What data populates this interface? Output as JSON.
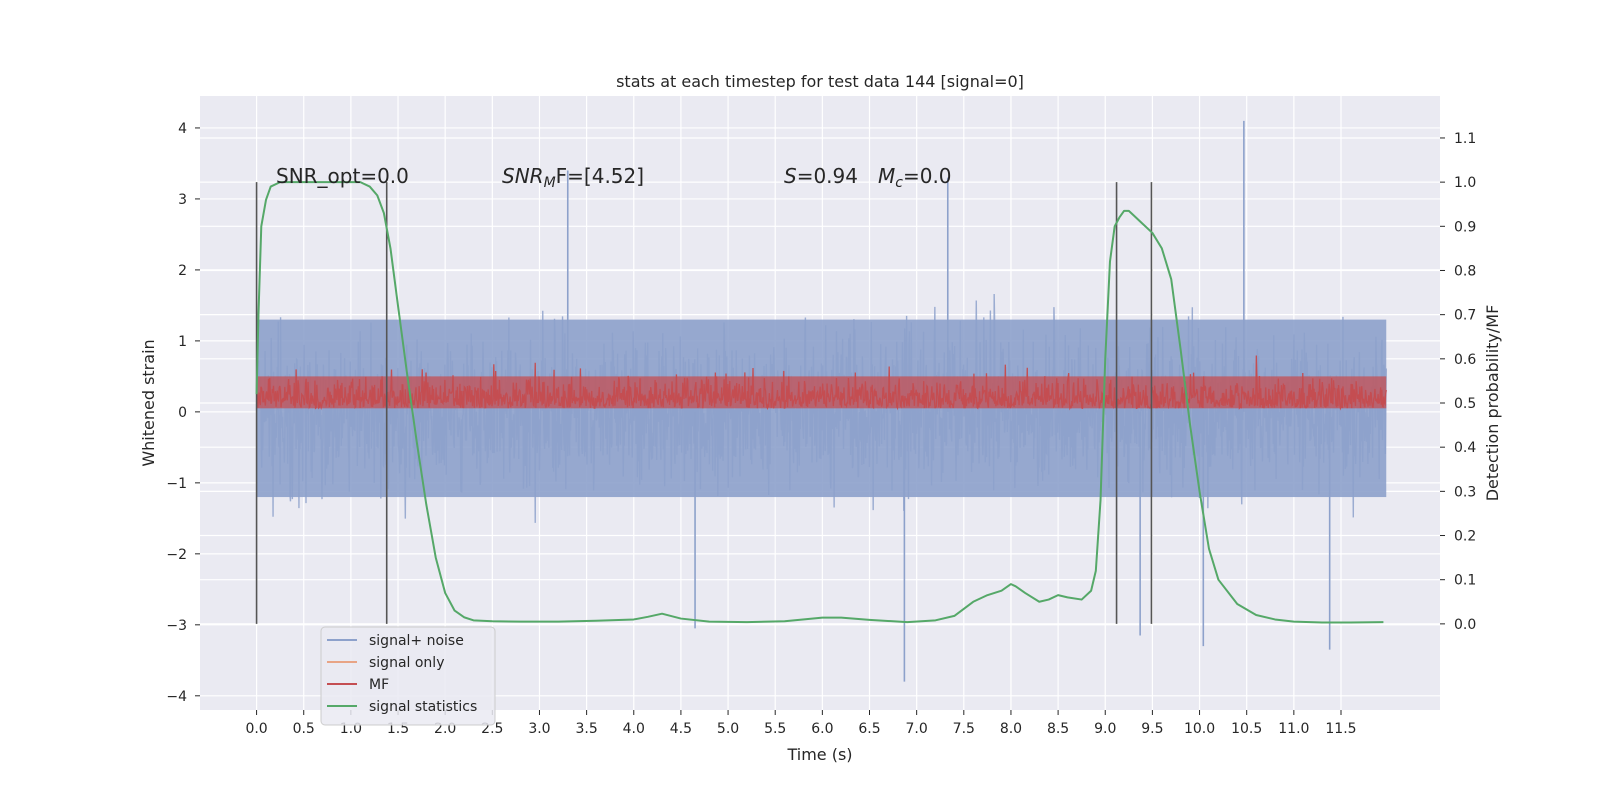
{
  "chart_data": {
    "type": "line",
    "title": "stats at each timestep for test data 144 [signal=0]",
    "xlabel": "Time (s)",
    "ylabel": "Whitened strain",
    "ylabel_right": "Detection probability/MF",
    "xlim": [
      -0.6,
      12.55
    ],
    "ylim": [
      -4.2,
      4.45
    ],
    "ylim_right": [
      -0.195,
      1.195
    ],
    "x_ticks": [
      "0.0",
      "0.5",
      "1.0",
      "1.5",
      "2.0",
      "2.5",
      "3.0",
      "3.5",
      "4.0",
      "4.5",
      "5.0",
      "5.5",
      "6.0",
      "6.5",
      "7.0",
      "7.5",
      "8.0",
      "8.5",
      "9.0",
      "9.5",
      "10.0",
      "10.5",
      "11.0",
      "11.5"
    ],
    "y_ticks": [
      "4",
      "3",
      "2",
      "1",
      "0",
      "−1",
      "−2",
      "−3",
      "−4"
    ],
    "y_ticks_right": [
      "1.1",
      "1.0",
      "0.9",
      "0.8",
      "0.7",
      "0.6",
      "0.5",
      "0.4",
      "0.3",
      "0.2",
      "0.1",
      "0.0"
    ],
    "grid": true,
    "legend_position": "lower-left",
    "annotations": {
      "snr_opt": "SNR_opt=0.0",
      "snr_mf_main": "SNR",
      "snr_mf_sub": "M",
      "snr_mf_rest": "F=[4.52]",
      "s_main": "S",
      "s_rest": "=0.94",
      "mc_main": "M",
      "mc_sub": "c",
      "mc_rest": "=0.0"
    },
    "vertical_markers_x": [
      0.0,
      1.38,
      9.12,
      9.49
    ],
    "series": [
      {
        "name": "signal+ noise",
        "color": "#8da1cb",
        "axis": "left",
        "x_range": [
          0.0,
          11.98
        ],
        "band_typical": [
          -1.2,
          1.3
        ],
        "band_peaks": [
          -3.0,
          3.2
        ],
        "notable_peaks": [
          [
            10.47,
            4.1
          ],
          [
            6.87,
            -3.8
          ],
          [
            3.3,
            3.4
          ],
          [
            11.38,
            -3.35
          ],
          [
            9.37,
            -3.15
          ],
          [
            10.04,
            -3.3
          ],
          [
            7.33,
            3.3
          ],
          [
            4.65,
            -3.05
          ]
        ]
      },
      {
        "name": "signal only",
        "color": "#e8a485",
        "axis": "left",
        "values": []
      },
      {
        "name": "MF",
        "color": "#c44e52",
        "axis": "left",
        "x_range": [
          0.0,
          11.98
        ],
        "band_typical": [
          0.05,
          0.5
        ],
        "band_peaks": [
          0.0,
          0.85
        ]
      },
      {
        "name": "signal statistics",
        "color": "#55a868",
        "axis": "right",
        "x": [
          0.0,
          0.02,
          0.05,
          0.1,
          0.15,
          0.25,
          0.4,
          0.6,
          0.8,
          1.0,
          1.1,
          1.2,
          1.28,
          1.35,
          1.42,
          1.5,
          1.6,
          1.7,
          1.8,
          1.9,
          2.0,
          2.1,
          2.2,
          2.3,
          2.5,
          2.8,
          3.2,
          3.6,
          4.0,
          4.15,
          4.3,
          4.5,
          4.8,
          5.2,
          5.6,
          6.0,
          6.2,
          6.5,
          6.9,
          7.2,
          7.4,
          7.6,
          7.75,
          7.9,
          8.0,
          8.05,
          8.15,
          8.3,
          8.4,
          8.5,
          8.6,
          8.75,
          8.85,
          8.9,
          8.95,
          9.0,
          9.05,
          9.1,
          9.15,
          9.2,
          9.25,
          9.3,
          9.4,
          9.5,
          9.6,
          9.7,
          9.8,
          9.9,
          10.0,
          10.1,
          10.2,
          10.4,
          10.6,
          10.8,
          11.0,
          11.3,
          11.6,
          11.95
        ],
        "values": [
          0.52,
          0.7,
          0.9,
          0.96,
          0.99,
          1.0,
          1.0,
          1.0,
          1.0,
          1.0,
          1.0,
          0.99,
          0.97,
          0.93,
          0.85,
          0.72,
          0.56,
          0.41,
          0.27,
          0.15,
          0.07,
          0.03,
          0.015,
          0.008,
          0.006,
          0.005,
          0.005,
          0.007,
          0.01,
          0.016,
          0.023,
          0.012,
          0.005,
          0.004,
          0.006,
          0.014,
          0.014,
          0.009,
          0.004,
          0.008,
          0.018,
          0.05,
          0.065,
          0.075,
          0.09,
          0.085,
          0.07,
          0.05,
          0.055,
          0.065,
          0.06,
          0.055,
          0.075,
          0.12,
          0.28,
          0.6,
          0.82,
          0.9,
          0.92,
          0.935,
          0.935,
          0.925,
          0.905,
          0.885,
          0.85,
          0.78,
          0.62,
          0.45,
          0.3,
          0.17,
          0.1,
          0.045,
          0.02,
          0.01,
          0.005,
          0.003,
          0.003,
          0.004
        ]
      }
    ]
  }
}
